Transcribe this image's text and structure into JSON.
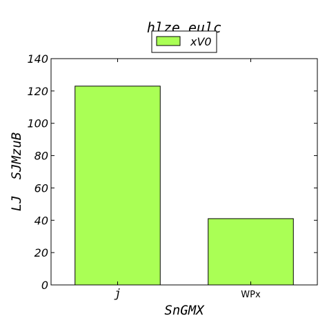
{
  "chart_data": {
    "type": "bar",
    "title": "hlze eulc",
    "xlabel": "SnGMX",
    "ylabel": "LJ  SJMzuB",
    "categories": [
      "j",
      "WPx"
    ],
    "series": [
      {
        "name": "xV0",
        "values": [
          123,
          41
        ],
        "color": "#aaff55"
      }
    ],
    "ylim": [
      0,
      140
    ],
    "yticks": [
      0,
      20,
      40,
      60,
      80,
      100,
      120,
      140
    ],
    "grid": false,
    "legend": "top-center"
  }
}
